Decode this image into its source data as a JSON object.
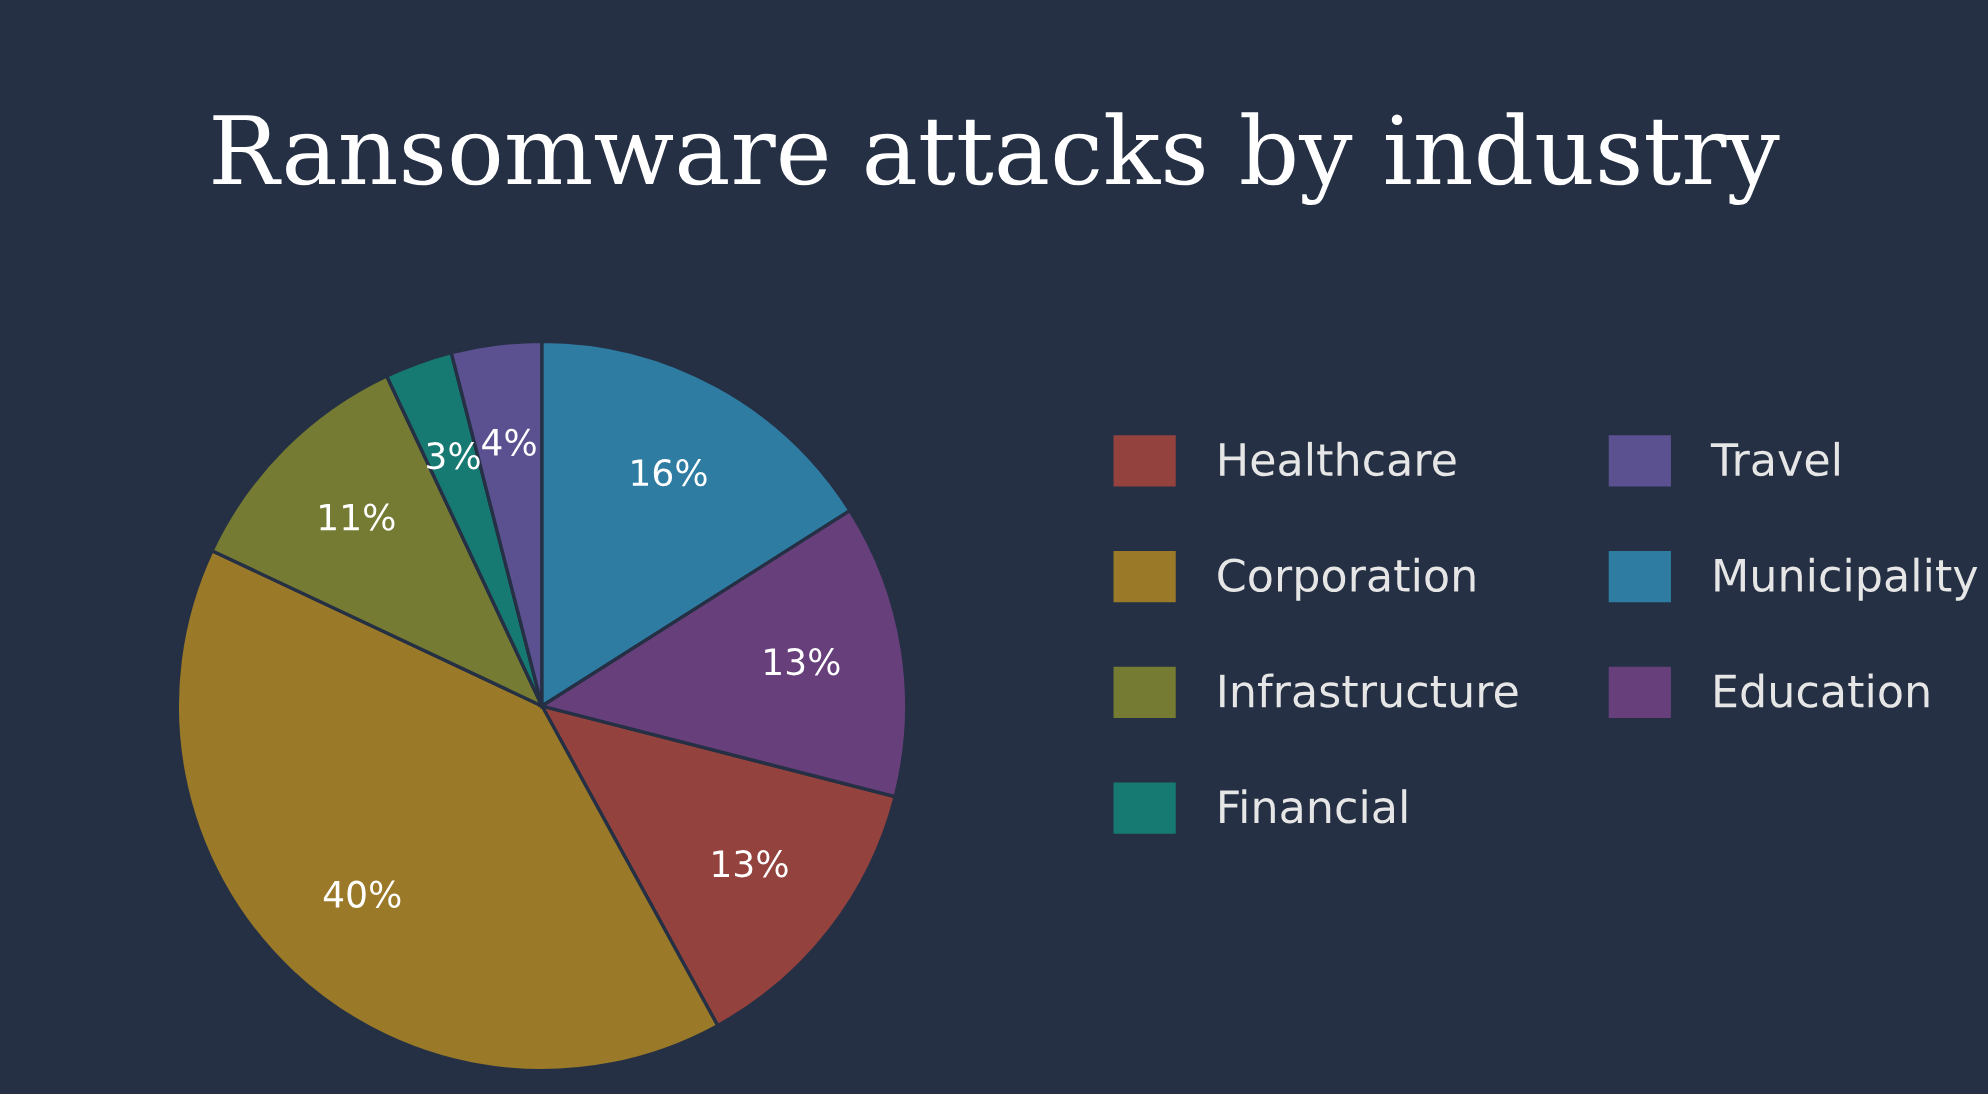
{
  "chart_data": {
    "type": "pie",
    "title": "Ransomware attacks by industry",
    "categories": [
      "Healthcare",
      "Corporation",
      "Infrastructure",
      "Financial",
      "Travel",
      "Municipality",
      "Education"
    ],
    "values": [
      13,
      40,
      11,
      3,
      4,
      16,
      13
    ],
    "value_labels": [
      "13%",
      "40%",
      "11%",
      "3%",
      "4%",
      "16%",
      "13%"
    ],
    "colors": [
      "#93423e",
      "#9a7a29",
      "#757b33",
      "#167a72",
      "#5b5090",
      "#2f7ca3",
      "#663f7b"
    ],
    "legend": "right"
  }
}
